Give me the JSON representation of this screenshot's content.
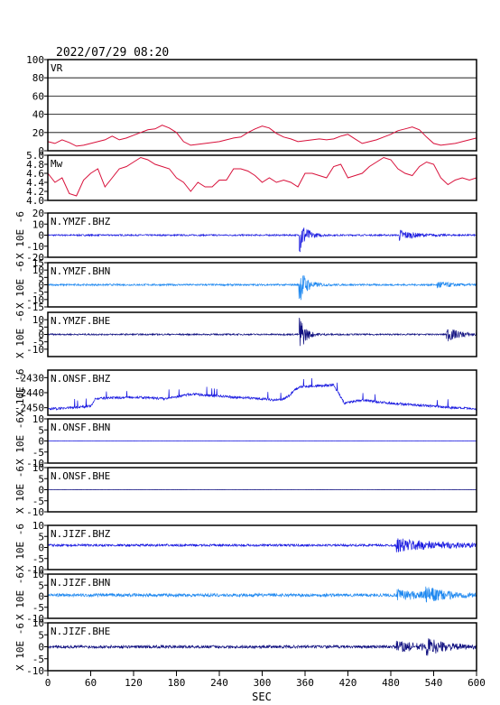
{
  "header": {
    "timestamp": "2022/07/29 08:20"
  },
  "xaxis": {
    "label": "SEC",
    "ticks": [
      0,
      60,
      120,
      180,
      240,
      300,
      360,
      420,
      480,
      540,
      600
    ],
    "range": [
      0,
      600
    ]
  },
  "colors": {
    "frame": "#000000",
    "grid": "#000000",
    "vr": "#d8103a",
    "mw": "#d8103a",
    "dark_blue": "#101080",
    "blue": "#1818e0",
    "light_blue": "#1e88f0"
  },
  "chart_data": [
    {
      "type": "line",
      "id": "vr",
      "label": "VR",
      "ylim": [
        0,
        100
      ],
      "yticks": [
        "100",
        "80",
        "60",
        "40",
        "20",
        "0"
      ],
      "grid": true,
      "color": "red",
      "series": [
        {
          "x": [
            0,
            10,
            20,
            30,
            40,
            50,
            60,
            70,
            80,
            90,
            100,
            110,
            120,
            130,
            140,
            150,
            160,
            170,
            180,
            190,
            200,
            210,
            220,
            230,
            240,
            250,
            260,
            270,
            280,
            290,
            300,
            310,
            320,
            330,
            340,
            350,
            360,
            370,
            380,
            390,
            400,
            410,
            420,
            430,
            440,
            450,
            460,
            470,
            480,
            490,
            500,
            510,
            520,
            530,
            540,
            550,
            560,
            570,
            580,
            590,
            600
          ],
          "values": [
            10,
            8,
            12,
            9,
            5,
            6,
            8,
            10,
            12,
            16,
            12,
            14,
            17,
            20,
            23,
            24,
            28,
            25,
            20,
            10,
            6,
            7,
            8,
            9,
            10,
            12,
            14,
            15,
            20,
            24,
            27,
            25,
            19,
            15,
            13,
            10,
            11,
            12,
            13,
            12,
            13,
            16,
            18,
            13,
            8,
            10,
            12,
            15,
            18,
            22,
            24,
            26,
            23,
            15,
            8,
            6,
            7,
            8,
            10,
            12,
            14
          ]
        }
      ]
    },
    {
      "type": "line",
      "id": "mw",
      "label": "Mw",
      "ylim": [
        4.0,
        5.0
      ],
      "yticks": [
        "5.0",
        "4.8",
        "4.6",
        "4.4",
        "4.2",
        "4.0"
      ],
      "grid": false,
      "color": "red",
      "series": [
        {
          "x": [
            0,
            10,
            20,
            30,
            40,
            50,
            60,
            70,
            80,
            90,
            100,
            110,
            120,
            130,
            140,
            150,
            160,
            170,
            180,
            190,
            200,
            210,
            220,
            230,
            240,
            250,
            260,
            270,
            280,
            290,
            300,
            310,
            320,
            330,
            340,
            350,
            360,
            370,
            380,
            390,
            400,
            410,
            420,
            430,
            440,
            450,
            460,
            470,
            480,
            490,
            500,
            510,
            520,
            530,
            540,
            550,
            560,
            570,
            580,
            590,
            600
          ],
          "values": [
            4.6,
            4.4,
            4.5,
            4.15,
            4.1,
            4.45,
            4.6,
            4.7,
            4.3,
            4.5,
            4.7,
            4.75,
            4.85,
            4.95,
            4.9,
            4.8,
            4.75,
            4.7,
            4.5,
            4.4,
            4.2,
            4.4,
            4.3,
            4.3,
            4.45,
            4.45,
            4.7,
            4.7,
            4.65,
            4.55,
            4.4,
            4.5,
            4.4,
            4.45,
            4.4,
            4.3,
            4.6,
            4.6,
            4.55,
            4.5,
            4.75,
            4.8,
            4.5,
            4.55,
            4.6,
            4.75,
            4.85,
            4.95,
            4.9,
            4.7,
            4.6,
            4.55,
            4.75,
            4.85,
            4.8,
            4.5,
            4.35,
            4.45,
            4.5,
            4.45,
            4.5
          ]
        }
      ]
    },
    {
      "type": "line",
      "id": "ymzf-bhz",
      "label": "N.YMZF.BHZ",
      "unit": "X 10E -6",
      "ylim": [
        -20,
        20
      ],
      "yticks": [
        "20",
        "10",
        "0",
        "-10",
        "-20"
      ],
      "color": "blue",
      "series": [
        {
          "baseline": 0,
          "noise": 0.7,
          "events": [
            {
              "t": 352,
              "amp": 18,
              "decay": 9
            },
            {
              "t": 492,
              "amp": 5,
              "decay": 20
            }
          ]
        }
      ]
    },
    {
      "type": "line",
      "id": "ymzf-bhn",
      "label": "N.YMZF.BHN",
      "unit": "X 10E -6",
      "ylim": [
        -15,
        15
      ],
      "yticks": [
        "15",
        "10",
        "5",
        "0",
        "-5",
        "-10",
        "-15"
      ],
      "color": "light_blue",
      "series": [
        {
          "baseline": 0,
          "noise": 0.6,
          "events": [
            {
              "t": 351,
              "amp": 14,
              "decay": 10
            },
            {
              "t": 545,
              "amp": 3,
              "decay": 15
            }
          ]
        }
      ]
    },
    {
      "type": "line",
      "id": "ymzf-bhe",
      "label": "N.YMZF.BHE",
      "unit": "X 10E -6",
      "ylim": [
        -15,
        15
      ],
      "yticks": [
        "10",
        "5",
        "0",
        "-5",
        "-10"
      ],
      "color": "dark_blue",
      "series": [
        {
          "baseline": 0,
          "noise": 0.5,
          "events": [
            {
              "t": 352,
              "amp": 14,
              "decay": 8
            },
            {
              "t": 558,
              "amp": 5,
              "decay": 18
            }
          ]
        }
      ]
    },
    {
      "type": "line",
      "id": "onsf-bhz",
      "label": "N.ONSF.BHZ",
      "unit": "X 10E -6",
      "ylim": [
        -2455,
        -2425
      ],
      "yticks": [
        "-2430",
        "-2440",
        "-2450"
      ],
      "color": "blue",
      "series": [
        {
          "x": [
            0,
            60,
            66,
            120,
            165,
            200,
            230,
            262,
            300,
            320,
            332,
            340,
            345,
            355,
            400,
            410,
            415,
            440,
            480,
            600
          ],
          "values": [
            -2451,
            -2449,
            -2444,
            -2443,
            -2444,
            -2441,
            -2442,
            -2443,
            -2444,
            -2445,
            -2444,
            -2441,
            -2438,
            -2436,
            -2435,
            -2443,
            -2447,
            -2445,
            -2447,
            -2451
          ],
          "noise": 0.8
        }
      ]
    },
    {
      "type": "line",
      "id": "onsf-bhn",
      "label": "N.ONSF.BHN",
      "unit": "X 10E -6",
      "ylim": [
        -10,
        10
      ],
      "yticks": [
        "10",
        "5",
        "0",
        "-5",
        "-10"
      ],
      "color": "blue",
      "series": [
        {
          "baseline": 0,
          "noise": 0.05,
          "events": []
        }
      ]
    },
    {
      "type": "line",
      "id": "onsf-bhe",
      "label": "N.ONSF.BHE",
      "unit": "X 10E -6",
      "ylim": [
        -10,
        10
      ],
      "yticks": [
        "10",
        "5",
        "0",
        "-5",
        "-10"
      ],
      "color": "dark_blue",
      "series": [
        {
          "baseline": 0,
          "noise": 0.05,
          "events": []
        }
      ]
    },
    {
      "type": "line",
      "id": "jizf-bhz",
      "label": "N.JIZF.BHZ",
      "unit": "X 10E -6",
      "ylim": [
        -10,
        10
      ],
      "yticks": [
        "10",
        "5",
        "0",
        "-5",
        "-10"
      ],
      "color": "blue",
      "series": [
        {
          "baseline": 1,
          "noise": 0.5,
          "events": [
            {
              "t": 488,
              "amp": 3,
              "decay": 60
            }
          ]
        }
      ]
    },
    {
      "type": "line",
      "id": "jizf-bhn",
      "label": "N.JIZF.BHN",
      "unit": "X 10E -6",
      "ylim": [
        -10,
        10
      ],
      "yticks": [
        "10",
        "5",
        "0",
        "-5",
        "-10"
      ],
      "color": "light_blue",
      "series": [
        {
          "baseline": 0.5,
          "noise": 0.7,
          "events": [
            {
              "t": 488,
              "amp": 2,
              "decay": 50
            },
            {
              "t": 528,
              "amp": 3,
              "decay": 25
            }
          ]
        }
      ]
    },
    {
      "type": "line",
      "id": "jizf-bhe",
      "label": "N.JIZF.BHE",
      "unit": "X 10E -6",
      "ylim": [
        -10,
        10
      ],
      "yticks": [
        "10",
        "5",
        "0",
        "-5",
        "-10"
      ],
      "color": "dark_blue",
      "series": [
        {
          "baseline": 0,
          "noise": 0.6,
          "events": [
            {
              "t": 488,
              "amp": 2,
              "decay": 50
            },
            {
              "t": 530,
              "amp": 3,
              "decay": 20
            }
          ]
        }
      ]
    }
  ]
}
